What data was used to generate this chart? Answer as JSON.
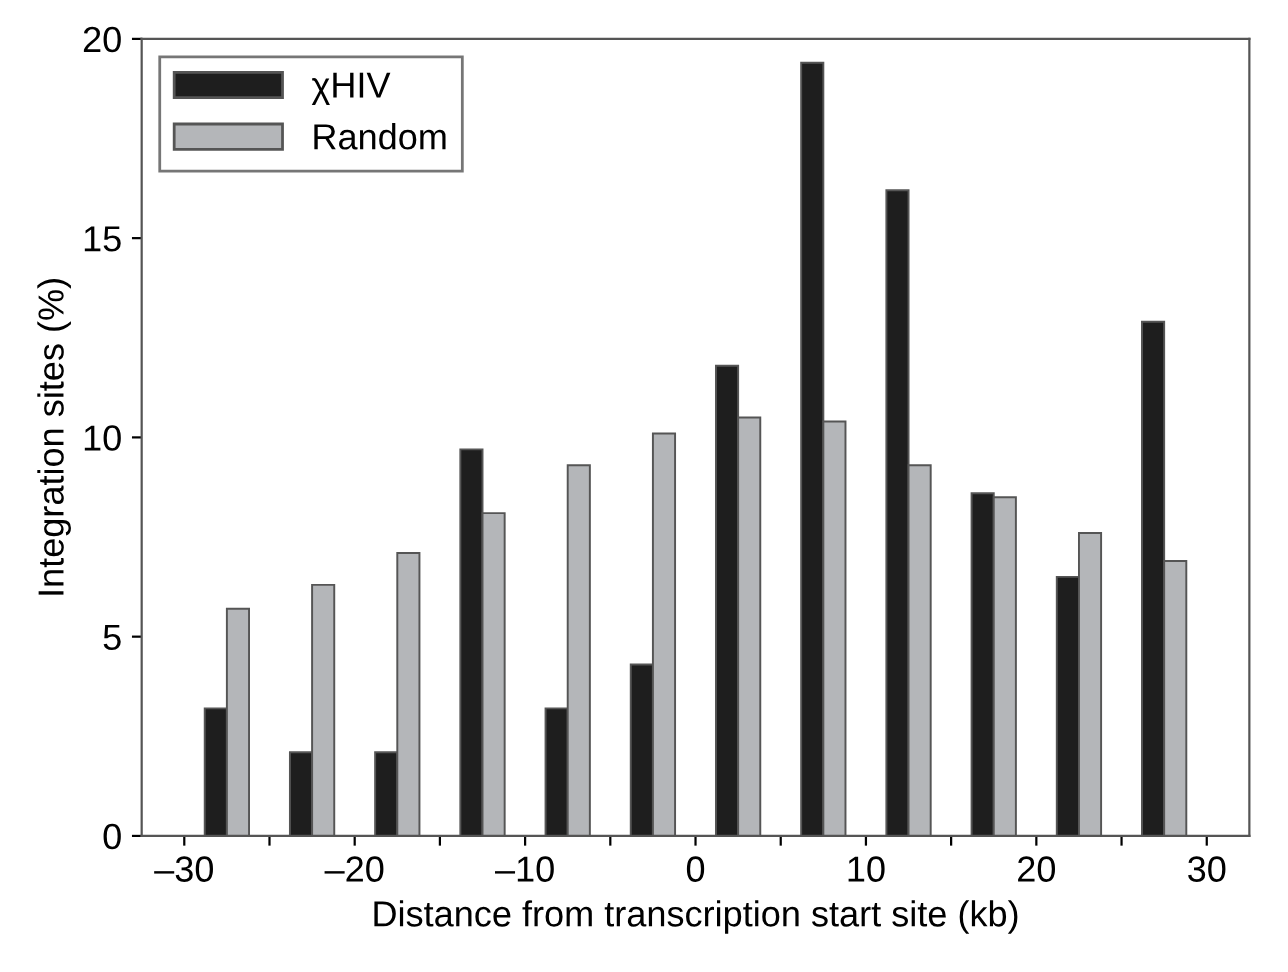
{
  "chart_data": {
    "type": "bar",
    "xlabel": "Distance from transcription start site (kb)",
    "ylabel": "Integration sites (%)",
    "x": [
      -27.5,
      -22.5,
      -17.5,
      -12.5,
      -7.5,
      -2.5,
      2.5,
      7.5,
      12.5,
      17.5,
      22.5,
      27.5
    ],
    "series": [
      {
        "name": "χHIV",
        "color": "#1e1e1e",
        "values": [
          3.2,
          2.1,
          2.1,
          9.7,
          3.2,
          4.3,
          11.8,
          19.4,
          16.2,
          8.6,
          6.5,
          12.9
        ]
      },
      {
        "name": "Random",
        "color": "#b4b6b9",
        "values": [
          5.7,
          6.3,
          7.1,
          8.1,
          9.3,
          10.1,
          10.5,
          10.4,
          9.3,
          8.5,
          7.6,
          6.9
        ]
      }
    ],
    "xlim": [
      -32.5,
      32.5
    ],
    "ylim": [
      0,
      20
    ],
    "xticks": [
      {
        "value": -30,
        "label": "–30"
      },
      {
        "value": -25,
        "label": null
      },
      {
        "value": -20,
        "label": "–20"
      },
      {
        "value": -15,
        "label": null
      },
      {
        "value": -10,
        "label": "–10"
      },
      {
        "value": -5,
        "label": null
      },
      0,
      {
        "value": 5,
        "label": null
      },
      10,
      {
        "value": 15,
        "label": null
      },
      20,
      {
        "value": 25,
        "label": null
      },
      30
    ],
    "yticks": [
      0,
      5,
      10,
      15,
      20
    ],
    "grid": false,
    "legend": "top left"
  }
}
